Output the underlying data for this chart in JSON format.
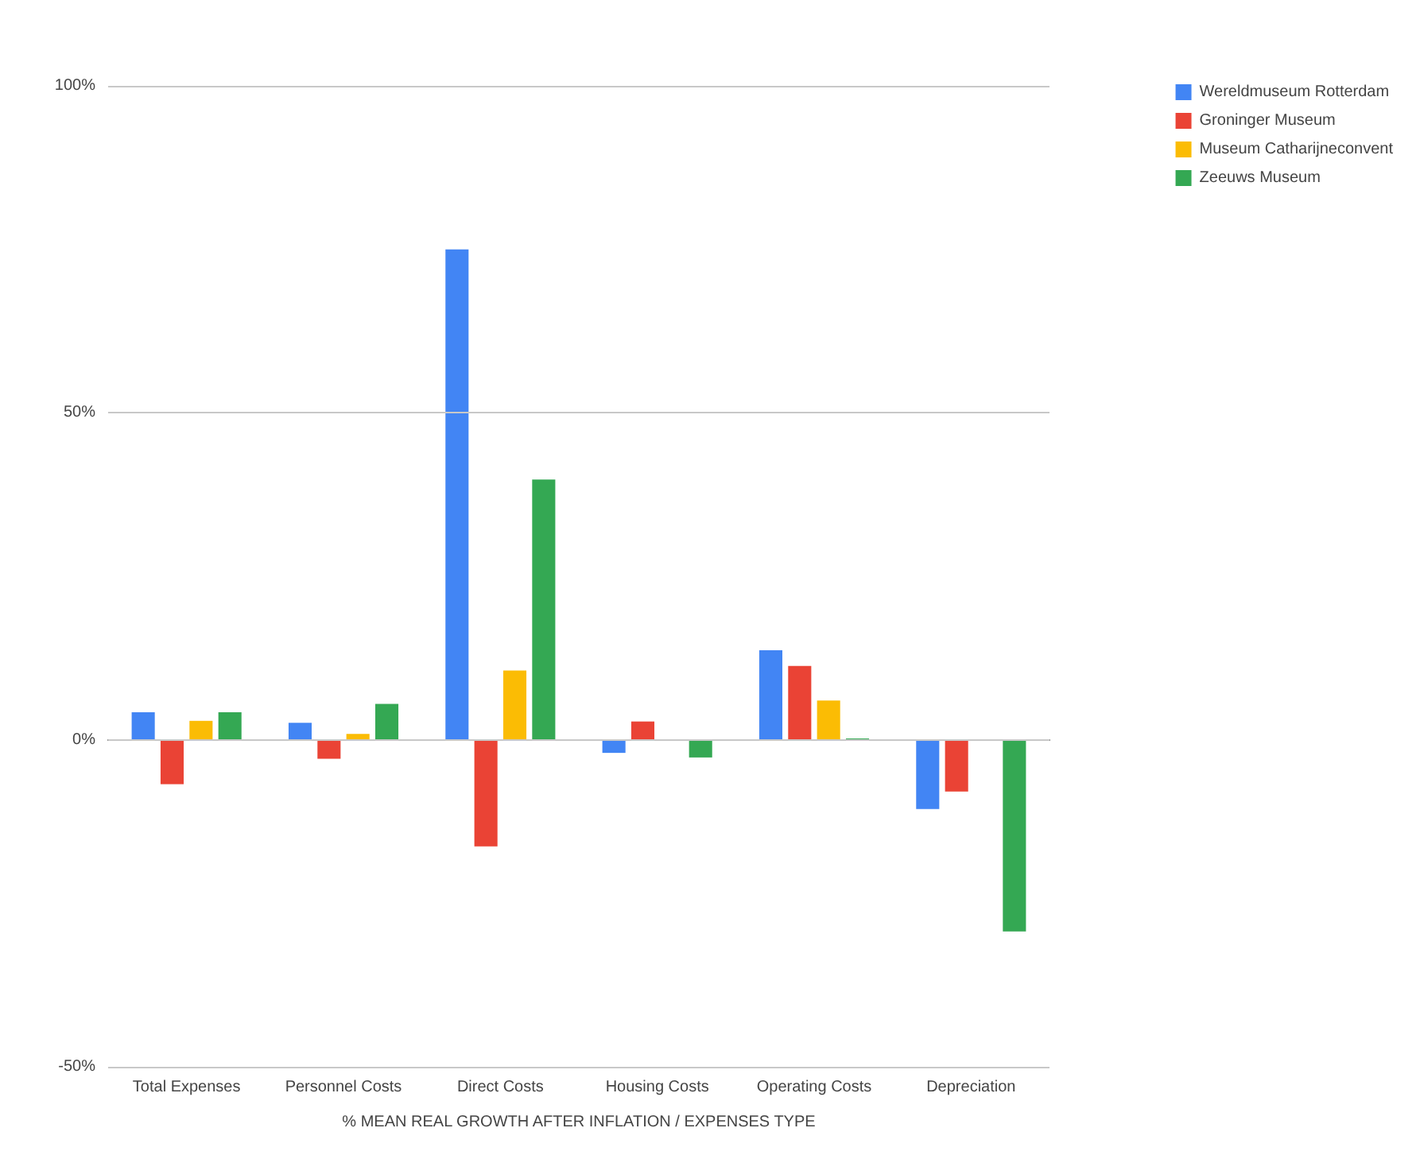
{
  "chart_data": {
    "type": "bar",
    "xlabel": "% MEAN REAL GROWTH AFTER INFLATION / EXPENSES TYPE",
    "categories": [
      "Total Expenses",
      "Personnel Costs",
      "Direct Costs",
      "Housing Costs",
      "Operating Costs",
      "Depreciation"
    ],
    "series": [
      {
        "name": "Wereldmuseum Rotterdam",
        "color": "#4285f4",
        "values": [
          4.2,
          2.6,
          75,
          -2,
          13.7,
          -10.6
        ]
      },
      {
        "name": "Groninger Museum",
        "color": "#ea4335",
        "values": [
          -6.8,
          -2.9,
          -16.3,
          2.8,
          11.3,
          -7.9
        ]
      },
      {
        "name": "Museum Catharijneconvent",
        "color": "#fbbc04",
        "values": [
          2.9,
          0.9,
          10.6,
          0,
          6,
          0
        ]
      },
      {
        "name": "Zeeuws Museum",
        "color": "#34a853",
        "values": [
          4.2,
          5.5,
          39.8,
          -2.7,
          0.2,
          -29.3
        ]
      }
    ],
    "ylim": [
      -50,
      100
    ],
    "yticks": [
      {
        "value": -50,
        "label": "-50%"
      },
      {
        "value": 0,
        "label": "0%"
      },
      {
        "value": 50,
        "label": "50%"
      },
      {
        "value": 100,
        "label": "100%"
      }
    ],
    "grid": "y",
    "legend": "top right"
  }
}
